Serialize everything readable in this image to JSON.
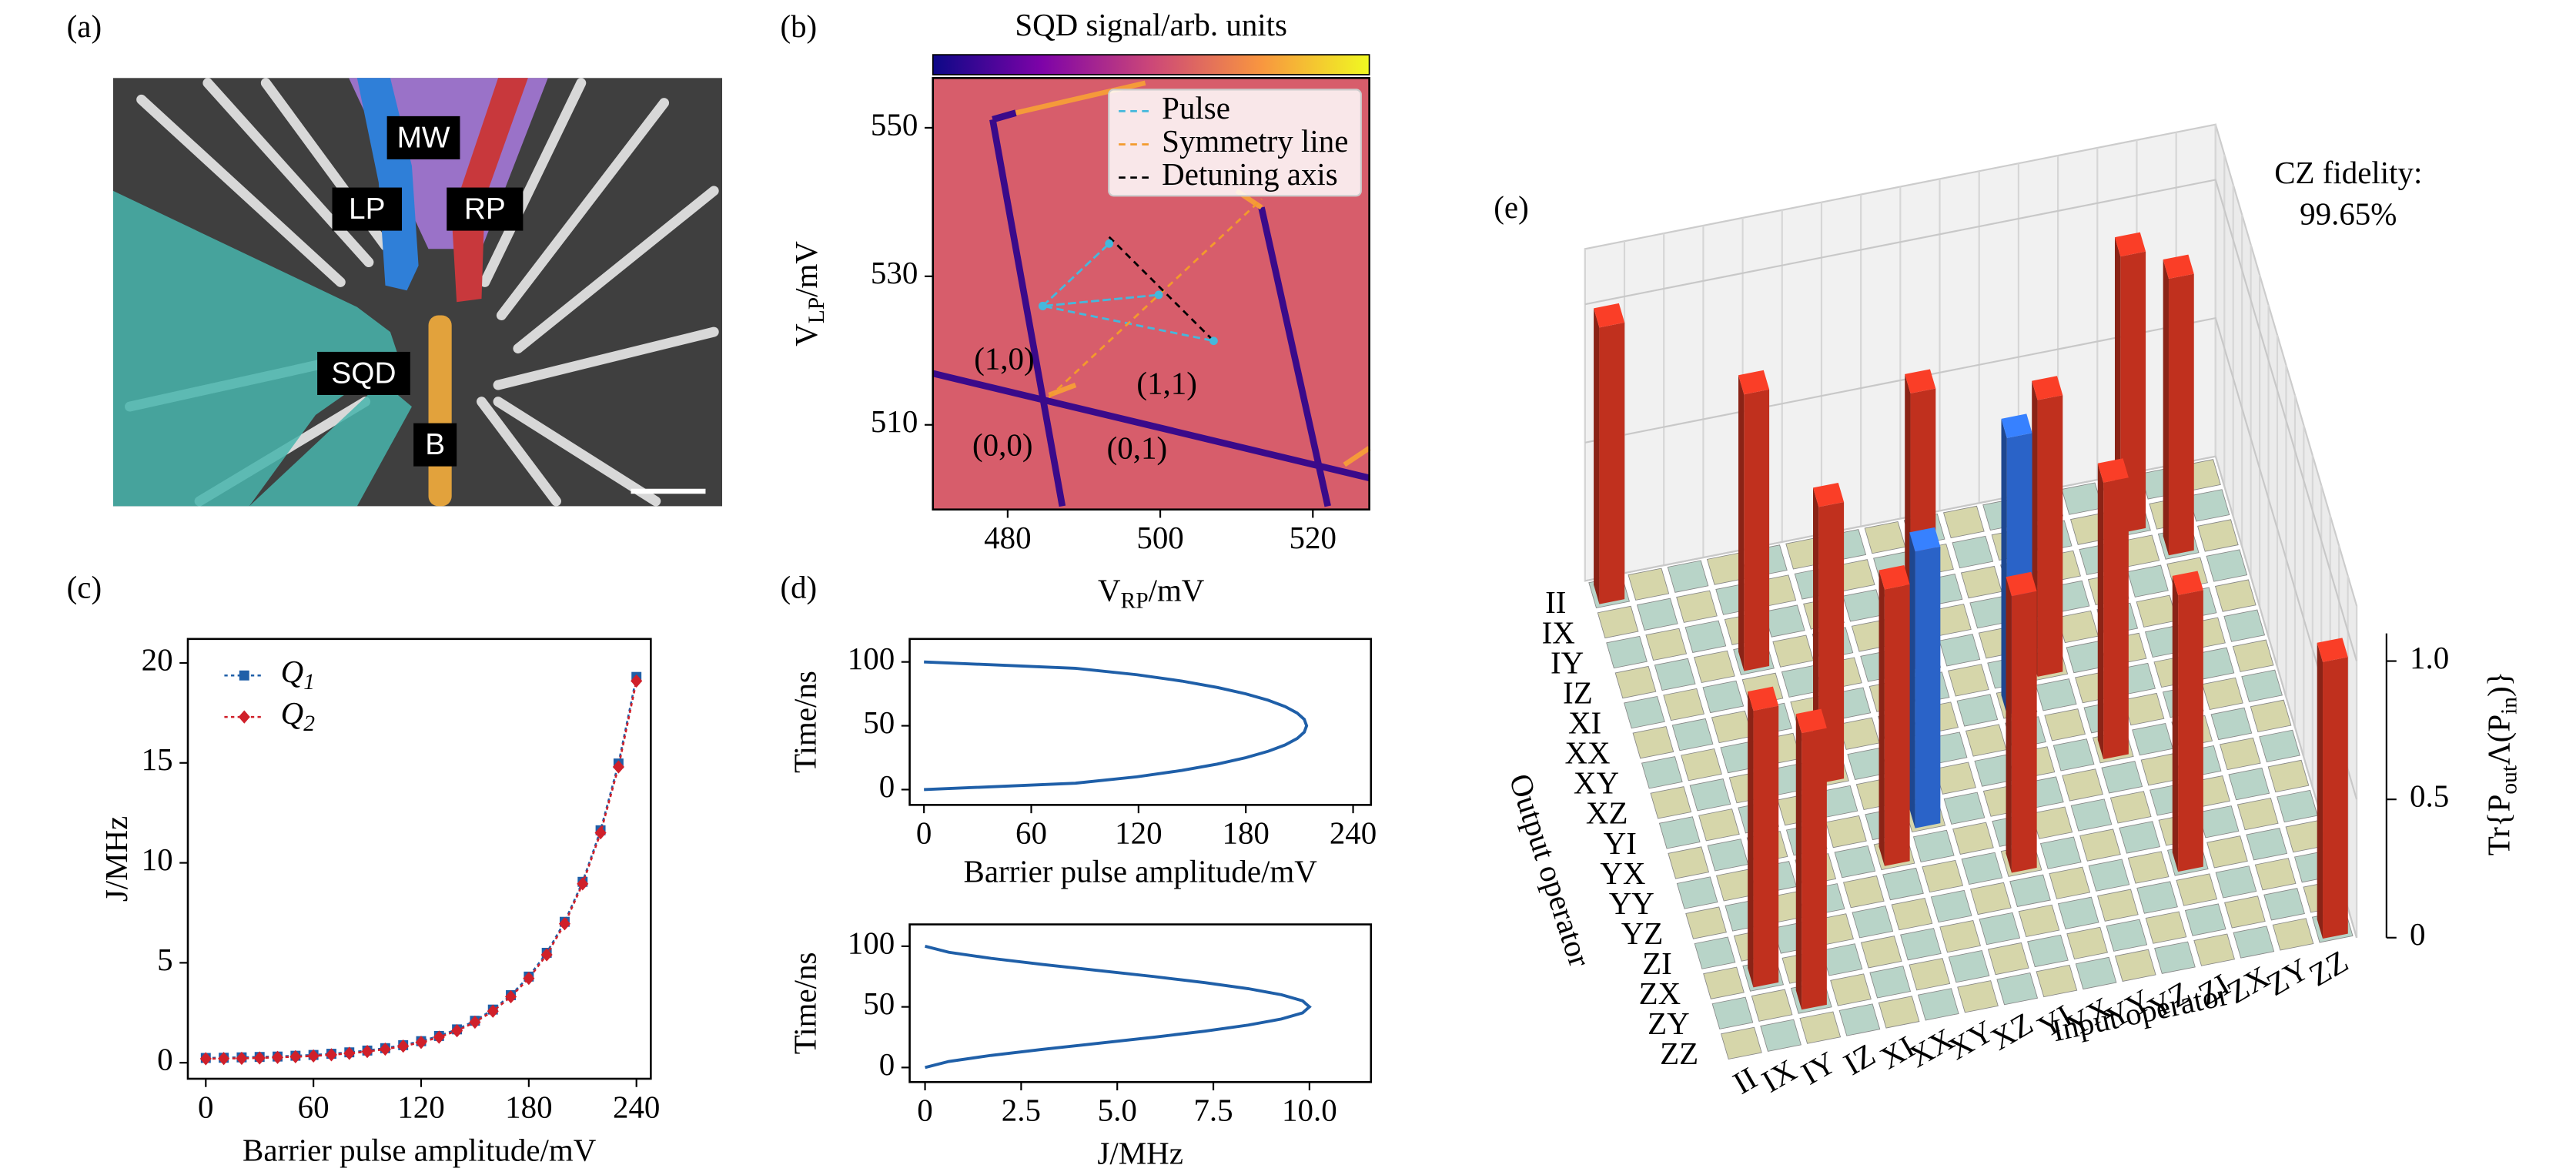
{
  "sem_image": {
    "panel_label": "(a)",
    "labels": [
      "MW",
      "LP",
      "RP",
      "SQD",
      "B"
    ]
  },
  "chart_data": [
    {
      "type": "line",
      "panel_label": "(c)",
      "xlabel": "Barrier pulse amplitude/mV",
      "ylabel": "J/MHz",
      "xlim": [
        -10,
        248
      ],
      "ylim": [
        -0.8,
        21.2
      ],
      "xticks": [
        0,
        60,
        120,
        180,
        240
      ],
      "yticks": [
        0,
        5,
        10,
        15,
        20
      ],
      "legend": "upper left",
      "x": [
        0,
        10,
        20,
        30,
        40,
        50,
        60,
        70,
        80,
        90,
        100,
        110,
        120,
        130,
        140,
        150,
        160,
        170,
        180,
        190,
        200,
        210,
        220,
        230,
        240
      ],
      "series": [
        {
          "name": [
            "Q",
            "1"
          ],
          "color": "#1f5fa8",
          "marker": "square",
          "values": [
            0.24,
            0.25,
            0.27,
            0.29,
            0.31,
            0.35,
            0.39,
            0.45,
            0.52,
            0.61,
            0.73,
            0.88,
            1.08,
            1.34,
            1.67,
            2.1,
            2.66,
            3.38,
            4.31,
            5.5,
            7.05,
            9.05,
            11.63,
            14.97,
            19.3
          ]
        },
        {
          "name": [
            "Q",
            "2"
          ],
          "color": "#d0202a",
          "marker": "diamond",
          "values": [
            0.2,
            0.21,
            0.22,
            0.24,
            0.27,
            0.3,
            0.34,
            0.4,
            0.47,
            0.56,
            0.68,
            0.83,
            1.02,
            1.28,
            1.6,
            2.03,
            2.58,
            3.3,
            4.22,
            5.4,
            6.95,
            8.95,
            11.5,
            14.8,
            19.1
          ]
        }
      ]
    },
    {
      "type": "line",
      "panel_label": "(d)",
      "xlabel": "Barrier pulse amplitude/mV",
      "ylabel": "Time/ns",
      "xlim": [
        -8,
        250
      ],
      "ylim": [
        -12,
        118
      ],
      "xticks": [
        0,
        60,
        120,
        180,
        240
      ],
      "yticks": [
        0,
        50,
        100
      ],
      "color": "#1f5fa8",
      "x": [
        0,
        84.6,
        119,
        144.2,
        164.1,
        180,
        192.5,
        202,
        208.7,
        212.7,
        214,
        212.7,
        208.7,
        202,
        192.5,
        180,
        164.1,
        144.2,
        119,
        84.6,
        0
      ],
      "values": [
        0,
        5,
        10,
        15,
        20,
        25,
        30,
        35,
        40,
        45,
        50,
        55,
        60,
        65,
        70,
        75,
        80,
        85,
        90,
        95,
        100
      ]
    },
    {
      "type": "line",
      "xlabel": "J/MHz",
      "ylabel": "Time/ns",
      "xlim": [
        -0.4,
        11.6
      ],
      "ylim": [
        -12,
        118
      ],
      "xticks": [
        0,
        2.5,
        {
          "value": 5,
          "label": "5.0"
        },
        7.5,
        {
          "value": 10,
          "label": "10.0"
        }
      ],
      "yticks": [
        0,
        50,
        100
      ],
      "color": "#1f5fa8",
      "x": [
        0,
        0.62,
        1.72,
        3.06,
        4.51,
        5.95,
        7.28,
        8.41,
        9.27,
        9.82,
        10,
        9.82,
        9.27,
        8.41,
        7.28,
        5.95,
        4.51,
        3.06,
        1.72,
        0.62,
        0
      ],
      "values": [
        0,
        5,
        10,
        15,
        20,
        25,
        30,
        35,
        40,
        45,
        50,
        55,
        60,
        65,
        70,
        75,
        80,
        85,
        90,
        95,
        100
      ]
    },
    {
      "type": "map",
      "panel_label": "(b)",
      "colorbar_label": "SQD signal/arb. units",
      "xlabel": [
        "V",
        "RP",
        "/mV"
      ],
      "ylabel": [
        "V",
        "LP",
        "/mV"
      ],
      "xlim": [
        470.2,
        527.4
      ],
      "ylim": [
        498.6,
        556.7
      ],
      "xticks": [
        480,
        500,
        520
      ],
      "yticks": [
        510,
        530,
        550
      ],
      "line_style": "dashed",
      "legend": "upper right",
      "series": [
        {
          "name": "Pulse",
          "color": "#45b8dc",
          "x": [
            484.6,
            493.3,
            484.6,
            499.8,
            484.6,
            507,
            484.6
          ],
          "values": [
            526,
            534.4,
            526,
            527.5,
            526,
            521.3,
            526
          ]
        },
        {
          "name": "Symmetry line",
          "color": "#f39a2c",
          "x": [
            485.4,
            513.3
          ],
          "values": [
            513.7,
            540.4
          ]
        },
        {
          "name": "Detuning axis",
          "color": "#000000",
          "x": [
            493.3,
            507
          ],
          "values": [
            535.3,
            521.3
          ]
        }
      ],
      "annotations": [
        "(1,0)",
        "(1,1)",
        "(0,0)",
        "(0,1)"
      ]
    },
    {
      "type": "bar3d",
      "panel_label": "(e)",
      "xlabel": "Input operator",
      "ylabel": "Output operator",
      "zlabel": [
        "Tr{P",
        "out",
        "Λ(P",
        "in",
        ")}"
      ],
      "zlim": [
        0,
        1.2
      ],
      "zticks": [
        0,
        0.5,
        {
          "value": 1,
          "label": "1.0"
        }
      ],
      "positive_color": "#c0301e",
      "negative_color": "#2a63c8",
      "annotations": [
        "CZ fidelity:",
        "99.65%"
      ],
      "operators": [
        "II",
        "IX",
        "IY",
        "IZ",
        "XI",
        "XX",
        "XY",
        "XZ",
        "YI",
        "YX",
        "YY",
        "YZ",
        "ZI",
        "ZX",
        "ZY",
        "ZZ"
      ],
      "bars": [
        {
          "input": "II",
          "output": "II",
          "value": 1
        },
        {
          "input": "IX",
          "output": "ZX",
          "value": 1
        },
        {
          "input": "IY",
          "output": "ZY",
          "value": 1
        },
        {
          "input": "IZ",
          "output": "IZ",
          "value": 1
        },
        {
          "input": "XI",
          "output": "XZ",
          "value": 1
        },
        {
          "input": "XX",
          "output": "YY",
          "value": 1
        },
        {
          "input": "XY",
          "output": "YX",
          "value": -1
        },
        {
          "input": "XZ",
          "output": "XI",
          "value": 1
        },
        {
          "input": "YI",
          "output": "YZ",
          "value": 1
        },
        {
          "input": "YX",
          "output": "XY",
          "value": -1
        },
        {
          "input": "YY",
          "output": "XX",
          "value": 1
        },
        {
          "input": "YZ",
          "output": "YI",
          "value": 1
        },
        {
          "input": "ZI",
          "output": "ZI",
          "value": 1
        },
        {
          "input": "ZX",
          "output": "IX",
          "value": 1
        },
        {
          "input": "ZY",
          "output": "IY",
          "value": 1
        },
        {
          "input": "ZZ",
          "output": "ZZ",
          "value": 1
        }
      ]
    }
  ]
}
